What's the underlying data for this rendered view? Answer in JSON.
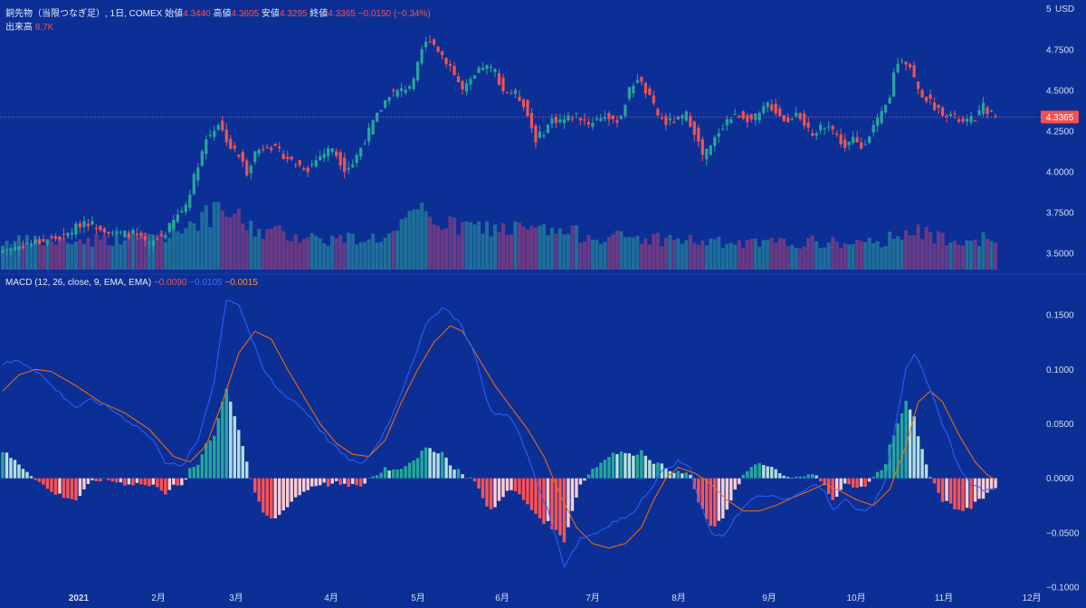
{
  "header": {
    "title": "銅先物（当限つなぎ足）, 1日, COMEX",
    "open_label": "始値",
    "open": "4.3440",
    "high_label": "高値",
    "high": "4.3605",
    "low_label": "安値",
    "low": "4.3295",
    "close_label": "終値",
    "close": "4.3365",
    "change": "−0.0150 (−0.34%)",
    "volume_label": "出来高",
    "volume": "8.7K",
    "currency": "USD",
    "axis_top_label": "5"
  },
  "macd_legend": {
    "label": "MACD (12, 26, close, 9, EMA, EMA)",
    "hist": "−0.0090",
    "macd": "−0.0105",
    "signal": "−0.0015"
  },
  "last_price_label": "4.3365",
  "colors": {
    "background": "#0c2f96",
    "up": "#26a69a",
    "down": "#ef5350",
    "macd_line": "#2962ff",
    "signal_line": "#ff6d00",
    "hist_up_strong": "#26a69a",
    "hist_up_weak": "#b2dfdb",
    "hist_down_strong": "#ff5252",
    "hist_down_weak": "#ffcdd2",
    "vol_up": "#1f6e9a",
    "vol_down": "#6a3a85"
  },
  "chart_data": [
    {
      "type": "candlestick",
      "title": "銅先物（当限つなぎ足）",
      "y_ticks": [
        3.5,
        3.75,
        4.0,
        4.25,
        4.5,
        4.75
      ],
      "y_tick_labels": [
        "3.5000",
        "3.7500",
        "4.0000",
        "4.2500",
        "4.5000",
        "4.7500"
      ],
      "ylim": [
        3.4,
        5.0
      ],
      "last_price": 4.3365,
      "x_tick_labels": [
        "2021",
        "2月",
        "3月",
        "4月",
        "5月",
        "6月",
        "7月",
        "8月",
        "9月",
        "10月",
        "11月",
        "12月"
      ],
      "close_anchors": [
        [
          0,
          3.52
        ],
        [
          8,
          3.57
        ],
        [
          15,
          3.6
        ],
        [
          20,
          3.7
        ],
        [
          25,
          3.65
        ],
        [
          28,
          3.62
        ],
        [
          32,
          3.62
        ],
        [
          36,
          3.55
        ],
        [
          40,
          3.63
        ],
        [
          45,
          3.8
        ],
        [
          48,
          4.05
        ],
        [
          50,
          4.2
        ],
        [
          53,
          4.3
        ],
        [
          56,
          4.15
        ],
        [
          58,
          4.1
        ],
        [
          60,
          4.0
        ],
        [
          62,
          4.12
        ],
        [
          65,
          4.17
        ],
        [
          68,
          4.12
        ],
        [
          72,
          4.05
        ],
        [
          75,
          4.02
        ],
        [
          78,
          4.1
        ],
        [
          81,
          4.15
        ],
        [
          84,
          4.02
        ],
        [
          86,
          4.05
        ],
        [
          88,
          4.15
        ],
        [
          91,
          4.3
        ],
        [
          95,
          4.48
        ],
        [
          98,
          4.5
        ],
        [
          101,
          4.55
        ],
        [
          103,
          4.75
        ],
        [
          105,
          4.82
        ],
        [
          107,
          4.75
        ],
        [
          110,
          4.65
        ],
        [
          113,
          4.5
        ],
        [
          115,
          4.55
        ],
        [
          118,
          4.65
        ],
        [
          121,
          4.62
        ],
        [
          123,
          4.5
        ],
        [
          126,
          4.48
        ],
        [
          128,
          4.42
        ],
        [
          131,
          4.2
        ],
        [
          133,
          4.25
        ],
        [
          135,
          4.32
        ],
        [
          138,
          4.32
        ],
        [
          141,
          4.35
        ],
        [
          144,
          4.3
        ],
        [
          148,
          4.35
        ],
        [
          150,
          4.3
        ],
        [
          152,
          4.35
        ],
        [
          154,
          4.5
        ],
        [
          156,
          4.58
        ],
        [
          159,
          4.45
        ],
        [
          161,
          4.35
        ],
        [
          163,
          4.3
        ],
        [
          166,
          4.32
        ],
        [
          168,
          4.35
        ],
        [
          170,
          4.25
        ],
        [
          172,
          4.1
        ],
        [
          174,
          4.15
        ],
        [
          176,
          4.25
        ],
        [
          178,
          4.32
        ],
        [
          181,
          4.35
        ],
        [
          184,
          4.32
        ],
        [
          186,
          4.35
        ],
        [
          188,
          4.42
        ],
        [
          191,
          4.35
        ],
        [
          193,
          4.3
        ],
        [
          195,
          4.38
        ],
        [
          197,
          4.3
        ],
        [
          199,
          4.2
        ],
        [
          201,
          4.28
        ],
        [
          203,
          4.3
        ],
        [
          205,
          4.22
        ],
        [
          207,
          4.15
        ],
        [
          209,
          4.2
        ],
        [
          211,
          4.15
        ],
        [
          214,
          4.28
        ],
        [
          216,
          4.35
        ],
        [
          218,
          4.45
        ],
        [
          219,
          4.62
        ],
        [
          221,
          4.7
        ],
        [
          223,
          4.65
        ],
        [
          225,
          4.5
        ],
        [
          227,
          4.45
        ],
        [
          230,
          4.38
        ],
        [
          233,
          4.35
        ],
        [
          236,
          4.3
        ],
        [
          239,
          4.33
        ],
        [
          241,
          4.4
        ],
        [
          244,
          4.34
        ]
      ],
      "last_bar_ohlc": {
        "open": 4.344,
        "high": 4.3605,
        "low": 4.3295,
        "close": 4.3365
      },
      "bars": 245
    },
    {
      "type": "bar",
      "title": "出来高",
      "last_value": "8.7K",
      "relative_anchors": [
        [
          0,
          0.38
        ],
        [
          20,
          0.4
        ],
        [
          40,
          0.5
        ],
        [
          48,
          0.7
        ],
        [
          55,
          0.8
        ],
        [
          62,
          0.55
        ],
        [
          80,
          0.42
        ],
        [
          95,
          0.45
        ],
        [
          103,
          0.8
        ],
        [
          110,
          0.6
        ],
        [
          130,
          0.55
        ],
        [
          150,
          0.45
        ],
        [
          165,
          0.42
        ],
        [
          180,
          0.35
        ],
        [
          200,
          0.38
        ],
        [
          215,
          0.35
        ],
        [
          221,
          0.55
        ],
        [
          230,
          0.45
        ],
        [
          244,
          0.42
        ]
      ]
    },
    {
      "type": "macd",
      "title": "MACD (12, 26, close, 9, EMA, EMA)",
      "y_ticks": [
        -0.1,
        -0.05,
        0,
        0.05,
        0.1,
        0.15
      ],
      "y_tick_labels": [
        "−0.1000",
        "−0.0500",
        "0.0000",
        "0.0500",
        "0.1000",
        "0.1500"
      ],
      "ylim": [
        -0.105,
        0.175
      ],
      "macd_anchors": [
        [
          0,
          0.105
        ],
        [
          4,
          0.108
        ],
        [
          8,
          0.1
        ],
        [
          12,
          0.085
        ],
        [
          18,
          0.065
        ],
        [
          22,
          0.072
        ],
        [
          26,
          0.065
        ],
        [
          30,
          0.055
        ],
        [
          34,
          0.045
        ],
        [
          38,
          0.03
        ],
        [
          40,
          0.015
        ],
        [
          44,
          0.01
        ],
        [
          48,
          0.035
        ],
        [
          52,
          0.09
        ],
        [
          55,
          0.165
        ],
        [
          58,
          0.16
        ],
        [
          61,
          0.13
        ],
        [
          64,
          0.1
        ],
        [
          68,
          0.08
        ],
        [
          72,
          0.07
        ],
        [
          76,
          0.055
        ],
        [
          80,
          0.035
        ],
        [
          84,
          0.02
        ],
        [
          88,
          0.012
        ],
        [
          92,
          0.03
        ],
        [
          96,
          0.06
        ],
        [
          100,
          0.1
        ],
        [
          104,
          0.14
        ],
        [
          108,
          0.158
        ],
        [
          112,
          0.145
        ],
        [
          116,
          0.115
        ],
        [
          119,
          0.07
        ],
        [
          121,
          0.058
        ],
        [
          124,
          0.06
        ],
        [
          127,
          0.04
        ],
        [
          130,
          0.01
        ],
        [
          134,
          -0.03
        ],
        [
          138,
          -0.08
        ],
        [
          142,
          -0.055
        ],
        [
          146,
          -0.05
        ],
        [
          150,
          -0.04
        ],
        [
          154,
          -0.035
        ],
        [
          157,
          -0.02
        ],
        [
          160,
          -0.005
        ],
        [
          163,
          0.01
        ],
        [
          166,
          0.015
        ],
        [
          169,
          0.01
        ],
        [
          171,
          -0.02
        ],
        [
          174,
          -0.05
        ],
        [
          177,
          -0.055
        ],
        [
          180,
          -0.035
        ],
        [
          184,
          -0.02
        ],
        [
          188,
          -0.015
        ],
        [
          191,
          -0.02
        ],
        [
          194,
          -0.018
        ],
        [
          197,
          -0.012
        ],
        [
          200,
          -0.005
        ],
        [
          202,
          -0.01
        ],
        [
          204,
          -0.03
        ],
        [
          207,
          -0.02
        ],
        [
          211,
          -0.03
        ],
        [
          214,
          -0.025
        ],
        [
          217,
          0.0
        ],
        [
          220,
          0.06
        ],
        [
          222,
          0.1
        ],
        [
          224,
          0.115
        ],
        [
          226,
          0.1
        ],
        [
          229,
          0.07
        ],
        [
          232,
          0.04
        ],
        [
          235,
          0.01
        ],
        [
          238,
          -0.005
        ],
        [
          241,
          -0.01
        ],
        [
          244,
          -0.0105
        ]
      ],
      "signal_anchors": [
        [
          0,
          0.08
        ],
        [
          4,
          0.095
        ],
        [
          8,
          0.1
        ],
        [
          12,
          0.098
        ],
        [
          18,
          0.085
        ],
        [
          24,
          0.07
        ],
        [
          30,
          0.06
        ],
        [
          36,
          0.045
        ],
        [
          42,
          0.02
        ],
        [
          46,
          0.015
        ],
        [
          50,
          0.03
        ],
        [
          54,
          0.07
        ],
        [
          58,
          0.115
        ],
        [
          62,
          0.135
        ],
        [
          66,
          0.128
        ],
        [
          70,
          0.1
        ],
        [
          74,
          0.075
        ],
        [
          78,
          0.05
        ],
        [
          82,
          0.032
        ],
        [
          86,
          0.022
        ],
        [
          90,
          0.02
        ],
        [
          94,
          0.035
        ],
        [
          98,
          0.07
        ],
        [
          102,
          0.1
        ],
        [
          106,
          0.125
        ],
        [
          110,
          0.14
        ],
        [
          113,
          0.135
        ],
        [
          117,
          0.11
        ],
        [
          121,
          0.085
        ],
        [
          125,
          0.065
        ],
        [
          129,
          0.045
        ],
        [
          133,
          0.02
        ],
        [
          137,
          -0.015
        ],
        [
          141,
          -0.045
        ],
        [
          145,
          -0.06
        ],
        [
          149,
          -0.064
        ],
        [
          153,
          -0.06
        ],
        [
          157,
          -0.045
        ],
        [
          160,
          -0.02
        ],
        [
          163,
          0.0
        ],
        [
          166,
          0.01
        ],
        [
          170,
          0.005
        ],
        [
          174,
          -0.005
        ],
        [
          178,
          -0.02
        ],
        [
          182,
          -0.03
        ],
        [
          186,
          -0.03
        ],
        [
          190,
          -0.025
        ],
        [
          194,
          -0.018
        ],
        [
          198,
          -0.012
        ],
        [
          202,
          -0.005
        ],
        [
          206,
          -0.012
        ],
        [
          210,
          -0.02
        ],
        [
          214,
          -0.025
        ],
        [
          218,
          -0.01
        ],
        [
          222,
          0.03
        ],
        [
          225,
          0.07
        ],
        [
          228,
          0.08
        ],
        [
          231,
          0.07
        ],
        [
          235,
          0.04
        ],
        [
          239,
          0.015
        ],
        [
          242,
          0.003
        ],
        [
          244,
          -0.0015
        ]
      ]
    }
  ]
}
